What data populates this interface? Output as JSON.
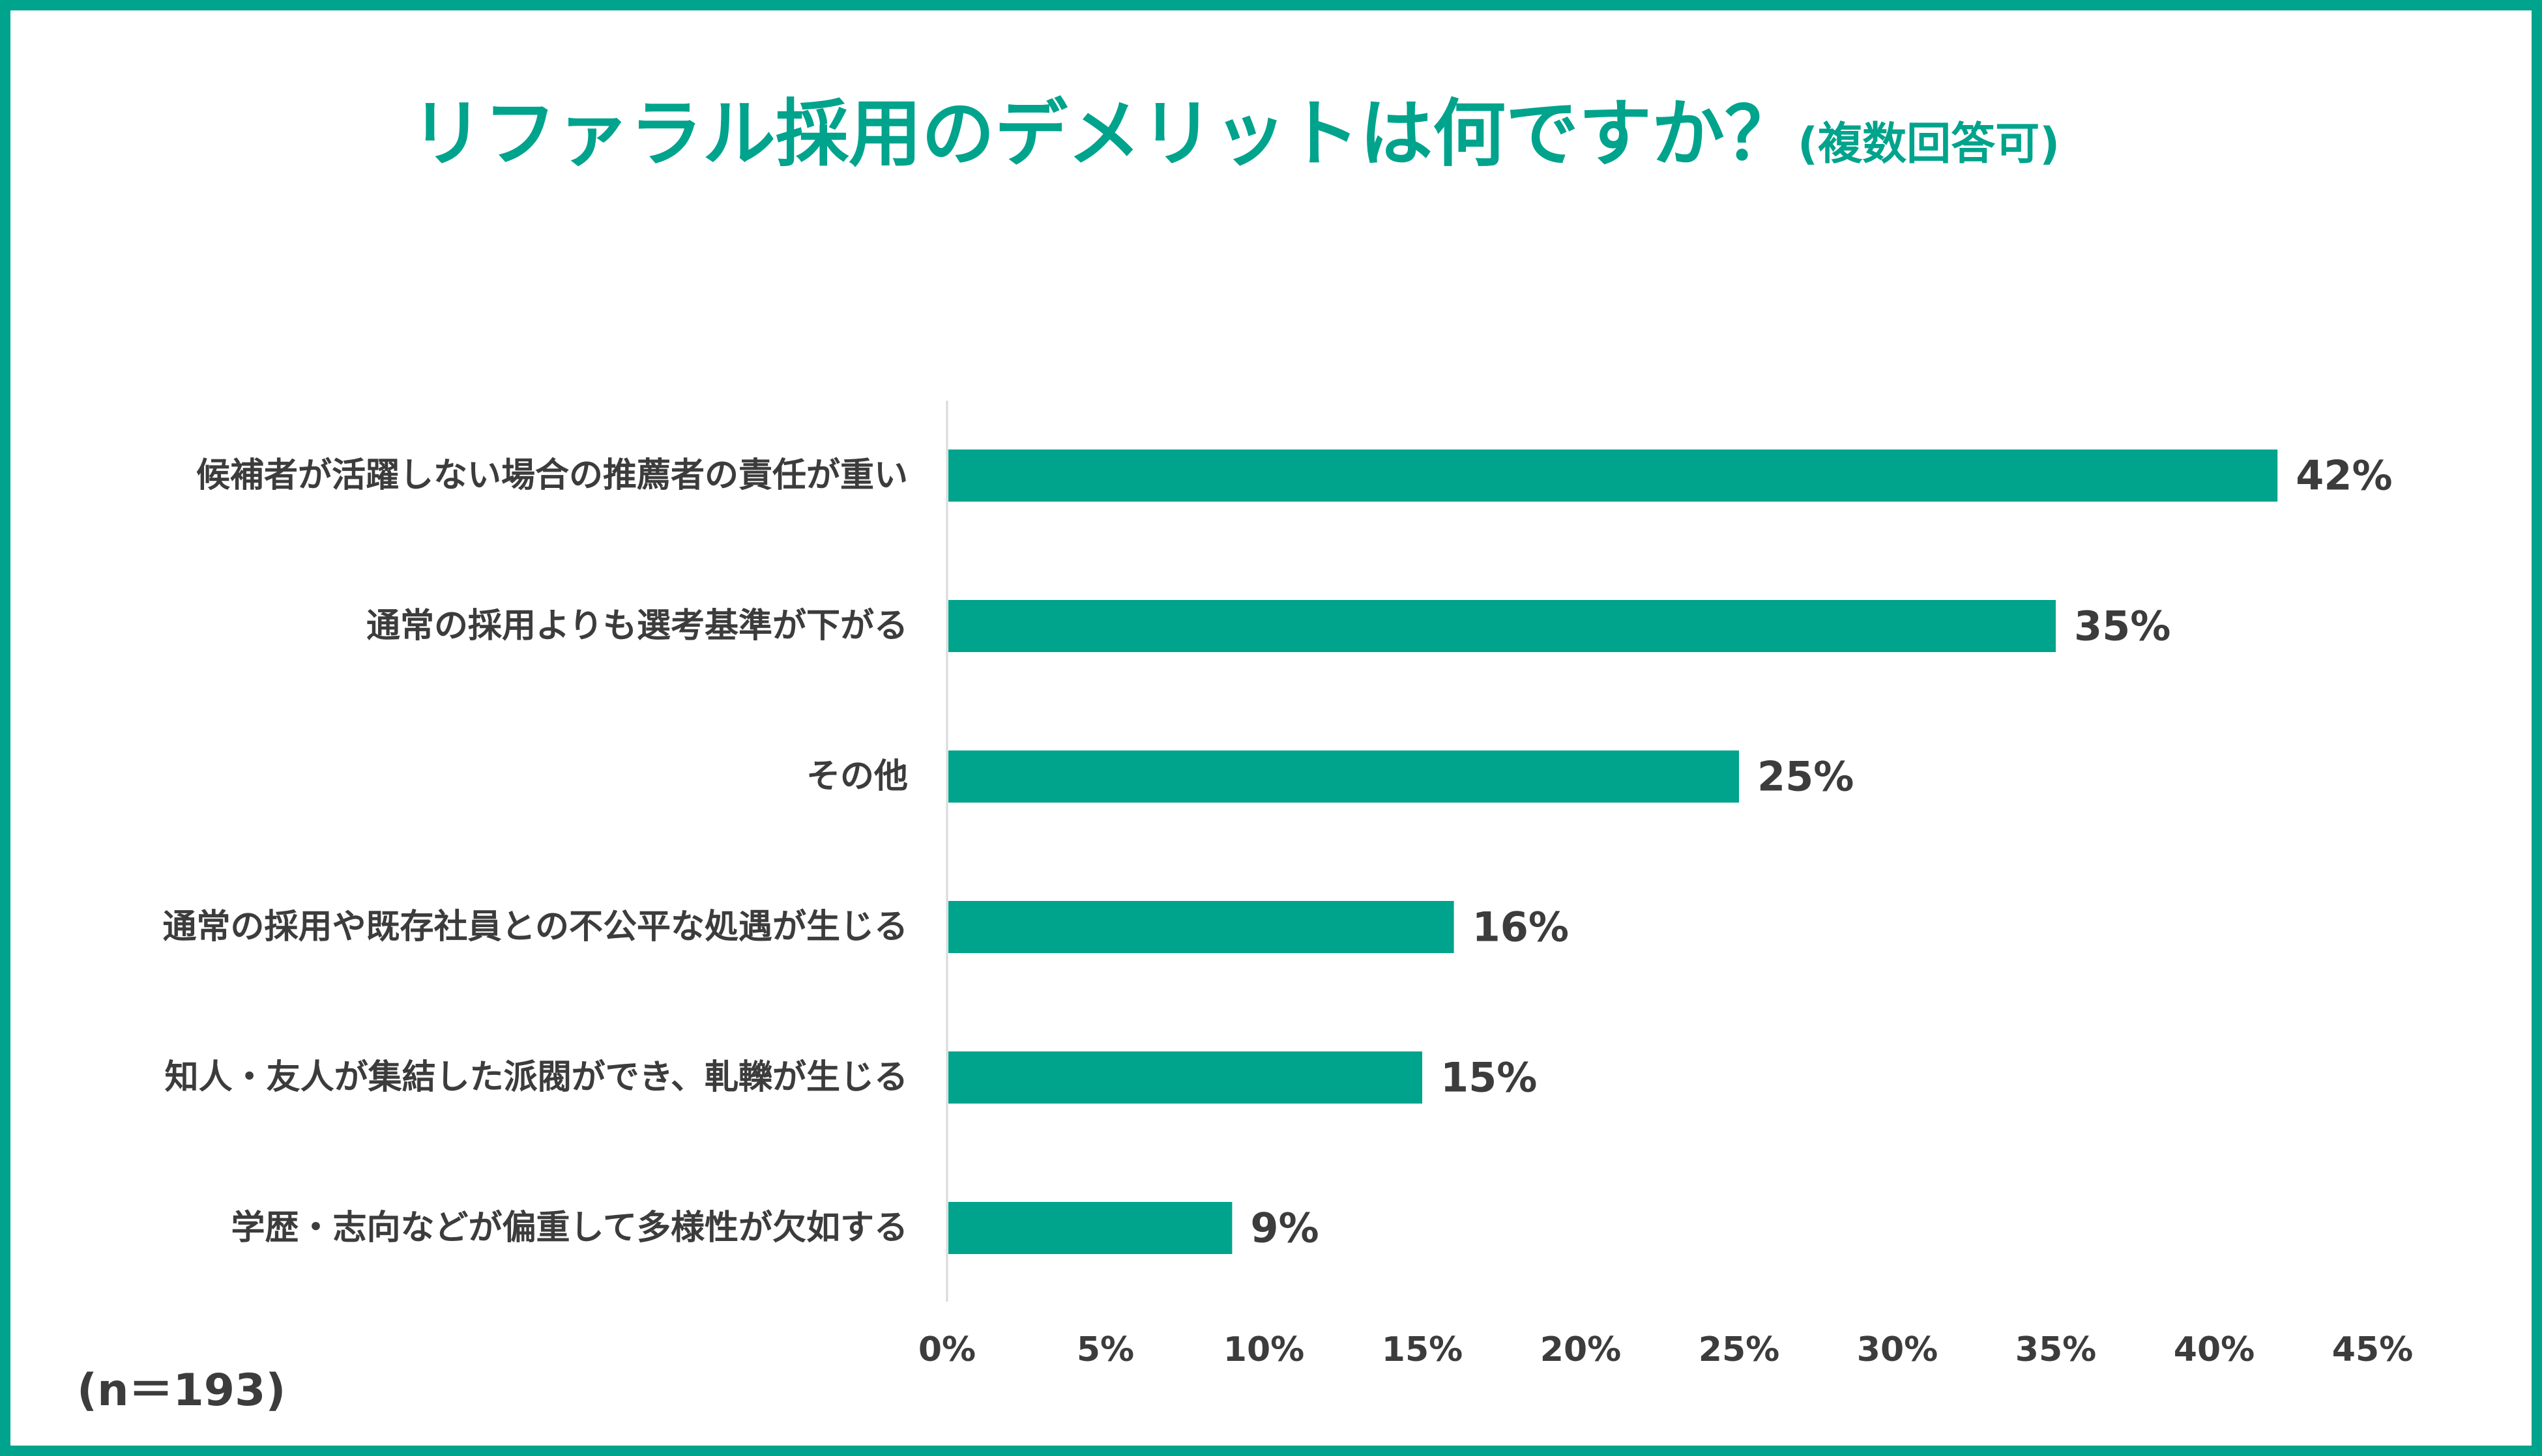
{
  "title": "リファラル採用のデメリットは何ですか？",
  "title_suffix": "(複数回答可)",
  "sample_note": "(n＝193)",
  "colors": {
    "accent": "#00a38c",
    "text": "#3c3c3c",
    "axis": "#d9d9d9"
  },
  "chart_data": {
    "type": "bar",
    "orientation": "horizontal",
    "categories": [
      "候補者が活躍しない場合の推薦者の責任が重い",
      "通常の採用よりも選考基準が下がる",
      "その他",
      "通常の採用や既存社員との不公平な処遇が生じる",
      "知人・友人が集結した派閥ができ、軋轢が生じる",
      "学歴・志向などが偏重して多様性が欠如する"
    ],
    "values": [
      42,
      35,
      25,
      16,
      15,
      9
    ],
    "value_labels": [
      "42%",
      "35%",
      "25%",
      "16%",
      "15%",
      "9%"
    ],
    "xlim": [
      0,
      45
    ],
    "xticks": [
      0,
      5,
      10,
      15,
      20,
      25,
      30,
      35,
      40,
      45
    ],
    "xtick_labels": [
      "0%",
      "5%",
      "10%",
      "15%",
      "20%",
      "25%",
      "30%",
      "35%",
      "40%",
      "45%"
    ],
    "grid": false
  }
}
